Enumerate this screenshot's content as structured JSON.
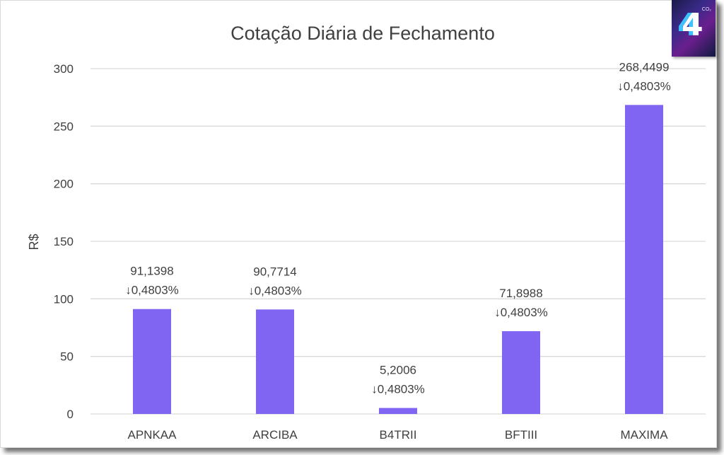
{
  "chart_data": {
    "type": "bar",
    "title": "Cotação Diária de Fechamento",
    "ylabel": "R$",
    "xlabel": "",
    "ylim": [
      0,
      300
    ],
    "yticks": [
      0,
      50,
      100,
      150,
      200,
      250,
      300
    ],
    "ytick_labels": [
      "0",
      "50",
      "100",
      "150",
      "200",
      "250",
      "300"
    ],
    "categories": [
      "APNKAA",
      "ARCIBA",
      "B4TRII",
      "BFTIII",
      "MAXIMA"
    ],
    "values": [
      91.1398,
      90.7714,
      5.2006,
      71.8988,
      268.4499
    ],
    "value_labels": [
      "91,1398",
      "90,7714",
      "5,2006",
      "71,8988",
      "268,4499"
    ],
    "change_labels": [
      "↓0,4803%",
      "↓0,4803%",
      "↓0,4803%",
      "↓0,4803%",
      "↓0,4803%"
    ],
    "grid": true,
    "legend": "none",
    "bar_color": "#8064f2",
    "grid_color": "#d9d9d9"
  },
  "logo": {
    "glyph": "4",
    "sup": "CO₂"
  }
}
